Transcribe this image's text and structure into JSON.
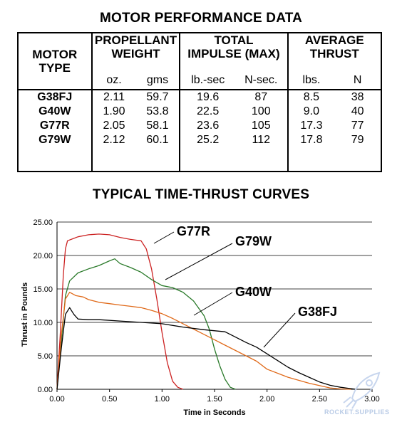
{
  "table": {
    "title": "MOTOR PERFORMANCE DATA",
    "headers": {
      "motor_type": [
        "MOTOR",
        "TYPE"
      ],
      "propellant": [
        "PROPELLANT",
        "WEIGHT"
      ],
      "impulse": [
        "TOTAL",
        "IMPULSE (MAX)"
      ],
      "thrust": [
        "AVERAGE",
        "THRUST"
      ]
    },
    "units": [
      "oz.",
      "gms",
      "lb.-sec",
      "N-sec.",
      "lbs.",
      "N"
    ],
    "rows": [
      {
        "motor": "G38FJ",
        "oz": "2.11",
        "gms": "59.7",
        "lbsec": "19.6",
        "nsec": "87",
        "lbs": "8.5",
        "n": "38"
      },
      {
        "motor": "G40W",
        "oz": "1.90",
        "gms": "53.8",
        "lbsec": "22.5",
        "nsec": "100",
        "lbs": "9.0",
        "n": "40"
      },
      {
        "motor": "G77R",
        "oz": "2.05",
        "gms": "58.1",
        "lbsec": "23.6",
        "nsec": "105",
        "lbs": "17.3",
        "n": "77"
      },
      {
        "motor": "G79W",
        "oz": "2.12",
        "gms": "60.1",
        "lbsec": "25.2",
        "nsec": "112",
        "lbs": "17.8",
        "n": "79"
      }
    ]
  },
  "watermark": "ROCKET.SUPPLIES",
  "chart_data": {
    "type": "line",
    "title": "TYPICAL TIME-THRUST CURVES",
    "xlabel": "Time in Seconds",
    "ylabel": "Thrust in Pounds",
    "xlim": [
      0,
      3.0
    ],
    "ylim": [
      0,
      25.0
    ],
    "xticks": [
      "0.00",
      "0.50",
      "1.00",
      "1.50",
      "2.00",
      "2.50",
      "3.00"
    ],
    "yticks": [
      "0.00",
      "5.00",
      "10.00",
      "15.00",
      "20.00",
      "25.00"
    ],
    "grid": "horizontal",
    "legend": "direct labels with leader lines",
    "series": [
      {
        "name": "G77R",
        "color": "#cc2222",
        "x": [
          0,
          0.03,
          0.06,
          0.08,
          0.1,
          0.15,
          0.2,
          0.3,
          0.4,
          0.5,
          0.6,
          0.7,
          0.75,
          0.8,
          0.85,
          0.9,
          0.95,
          1.0,
          1.05,
          1.1,
          1.15,
          1.2
        ],
        "y": [
          0,
          8,
          17,
          21,
          22.2,
          22.5,
          22.8,
          23.1,
          23.2,
          23.1,
          22.7,
          22.4,
          22.3,
          22.2,
          21.0,
          18.0,
          13.5,
          8.5,
          4.0,
          1.2,
          0.3,
          0
        ]
      },
      {
        "name": "G79W",
        "color": "#2a7a2a",
        "x": [
          0,
          0.04,
          0.08,
          0.12,
          0.2,
          0.3,
          0.4,
          0.5,
          0.55,
          0.6,
          0.7,
          0.8,
          0.9,
          1.0,
          1.1,
          1.2,
          1.3,
          1.4,
          1.45,
          1.5,
          1.55,
          1.6,
          1.65,
          1.7
        ],
        "y": [
          0,
          7,
          14,
          16.2,
          17.4,
          18.0,
          18.5,
          19.2,
          19.5,
          18.8,
          18.2,
          17.5,
          16.4,
          15.5,
          15.2,
          14.5,
          13.2,
          11.0,
          9.0,
          6.0,
          3.5,
          1.5,
          0.3,
          0
        ]
      },
      {
        "name": "G40W",
        "color": "#e06a1a",
        "x": [
          0,
          0.04,
          0.08,
          0.12,
          0.18,
          0.25,
          0.3,
          0.4,
          0.5,
          0.6,
          0.7,
          0.8,
          0.9,
          1.0,
          1.1,
          1.2,
          1.3,
          1.4,
          1.5,
          1.6,
          1.7,
          1.8,
          1.9,
          2.0,
          2.2,
          2.4,
          2.6,
          2.7,
          2.8
        ],
        "y": [
          0,
          8,
          13.5,
          14.5,
          14.0,
          13.8,
          13.4,
          13.0,
          12.8,
          12.6,
          12.4,
          12.2,
          11.8,
          11.3,
          10.6,
          9.8,
          9.0,
          8.2,
          7.4,
          6.6,
          5.8,
          5.0,
          4.2,
          3.0,
          1.8,
          0.9,
          0.2,
          0.05,
          0
        ]
      },
      {
        "name": "G38FJ",
        "color": "#000000",
        "x": [
          0,
          0.04,
          0.08,
          0.12,
          0.16,
          0.2,
          0.3,
          0.4,
          0.6,
          0.8,
          1.0,
          1.2,
          1.4,
          1.6,
          1.7,
          1.8,
          1.9,
          2.0,
          2.1,
          2.2,
          2.3,
          2.4,
          2.5,
          2.6,
          2.7,
          2.8,
          2.85
        ],
        "y": [
          0,
          6,
          11.2,
          12.2,
          11.2,
          10.5,
          10.4,
          10.4,
          10.2,
          10.0,
          9.8,
          9.3,
          8.9,
          8.6,
          7.8,
          7.0,
          6.3,
          5.3,
          4.3,
          3.3,
          2.5,
          1.8,
          1.1,
          0.6,
          0.3,
          0.1,
          0
        ]
      }
    ],
    "labels": [
      {
        "text": "G77R",
        "series": "G77R"
      },
      {
        "text": "G79W",
        "series": "G79W"
      },
      {
        "text": "G40W",
        "series": "G40W"
      },
      {
        "text": "G38FJ",
        "series": "G38FJ"
      }
    ]
  }
}
